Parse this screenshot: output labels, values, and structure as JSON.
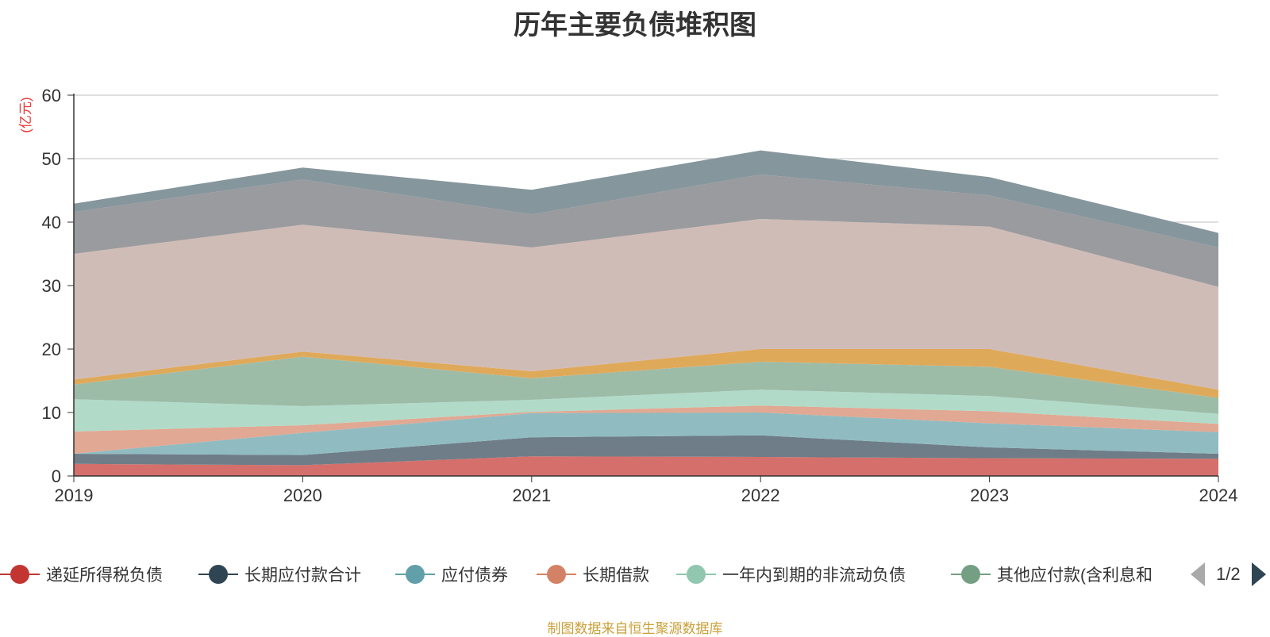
{
  "title": "历年主要负债堆积图",
  "unit_label": "(亿元)",
  "source_text": "制图数据来自恒生聚源数据库",
  "legend_pager": "1/2",
  "legend_items": [
    {
      "label": "递延所得税负债",
      "color": "#c23531"
    },
    {
      "label": "长期应付款合计",
      "color": "#2f4554"
    },
    {
      "label": "应付债券",
      "color": "#61a0a8"
    },
    {
      "label": "长期借款",
      "color": "#d48265"
    },
    {
      "label": "一年内到期的非流动负债",
      "color": "#91c7ae"
    },
    {
      "label": "其他应付款(含利息和",
      "color": "#749f83"
    }
  ],
  "chart_data": {
    "type": "area",
    "stacked": true,
    "title": "历年主要负债堆积图",
    "ylabel": "(亿元)",
    "x": [
      "2019",
      "2020",
      "2021",
      "2022",
      "2023",
      "2024"
    ],
    "ylim": [
      0,
      60
    ],
    "yticks": [
      0,
      10,
      20,
      30,
      40,
      50,
      60
    ],
    "grid": true,
    "legend_position": "bottom",
    "series": [
      {
        "name": "递延所得税负债",
        "color": "#d46f6b",
        "values": [
          1.9,
          1.7,
          3.1,
          3.0,
          2.8,
          2.7
        ]
      },
      {
        "name": "长期应付款合计",
        "color": "#6e7d88",
        "values": [
          1.6,
          1.6,
          3.0,
          3.4,
          1.7,
          0.8
        ]
      },
      {
        "name": "应付债券",
        "color": "#90bcc1",
        "values": [
          0.0,
          3.5,
          3.8,
          3.6,
          3.8,
          3.4
        ]
      },
      {
        "name": "长期借款",
        "color": "#e1a893",
        "values": [
          3.5,
          1.2,
          0.2,
          1.1,
          1.9,
          1.3
        ]
      },
      {
        "name": "一年内到期的非流动负债",
        "color": "#b1dbc8",
        "values": [
          5.1,
          3.0,
          1.9,
          2.5,
          2.4,
          1.6
        ]
      },
      {
        "name": "其他应付款(含利息和股利)",
        "color": "#9dbca8",
        "values": [
          2.3,
          7.8,
          3.4,
          4.4,
          4.6,
          2.5
        ]
      },
      {
        "name": "",
        "color": "#dfa95a",
        "values": [
          0.8,
          0.8,
          1.1,
          2.0,
          2.8,
          1.3
        ]
      },
      {
        "name": "",
        "color": "#d0bcb7",
        "values": [
          19.8,
          20.0,
          19.5,
          20.5,
          19.3,
          16.2
        ]
      },
      {
        "name": "",
        "color": "#9a9b9e",
        "values": [
          6.6,
          7.1,
          5.2,
          7.0,
          4.9,
          6.2
        ]
      },
      {
        "name": "",
        "color": "#86969d",
        "values": [
          1.3,
          1.9,
          3.9,
          3.8,
          2.9,
          2.3
        ]
      }
    ]
  }
}
